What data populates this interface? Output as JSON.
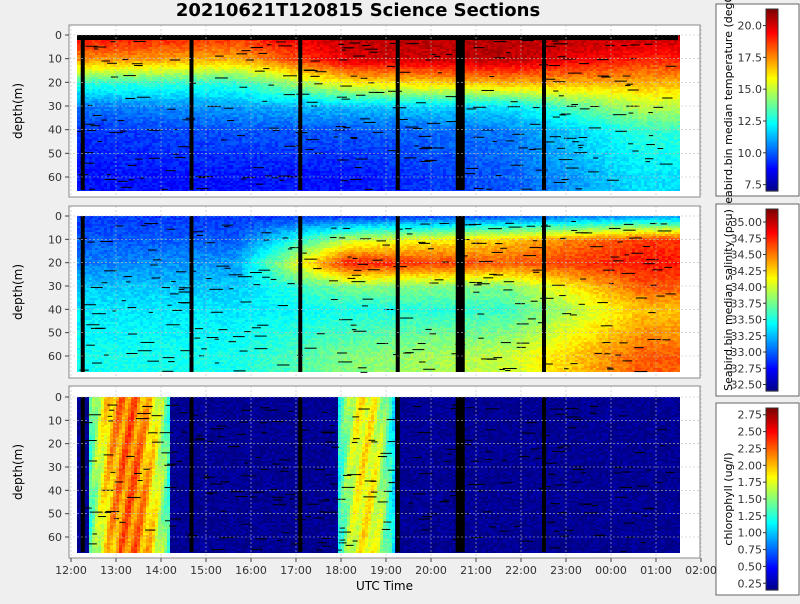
{
  "title": "20210621T120815 Science Sections",
  "x_tick_labels": [
    "12:00",
    "13:00",
    "14:00",
    "15:00",
    "16:00",
    "17:00",
    "18:00",
    "19:00",
    "20:00",
    "21:00",
    "22:00",
    "23:00",
    "00:00",
    "01:00",
    "02:00"
  ],
  "x_axis_label": "UTC Time",
  "panels": [
    {
      "ylabel": "depth(m)",
      "y_tick_labels": [
        "0",
        "10",
        "20",
        "30",
        "40",
        "50",
        "60"
      ],
      "colorbar_label": "seabird.bin median temperature (degC)",
      "colorbar_ticks": [
        "7.5",
        "10.0",
        "12.5",
        "15.0",
        "17.5",
        "20.0"
      ]
    },
    {
      "ylabel": "depth(m)",
      "y_tick_labels": [
        "0",
        "10",
        "20",
        "30",
        "40",
        "50",
        "60"
      ],
      "colorbar_label": "Seabird.bin median salinity (psu)",
      "colorbar_ticks": [
        "32.50",
        "32.75",
        "33.00",
        "33.25",
        "33.50",
        "33.75",
        "34.00",
        "34.25",
        "34.50",
        "34.75",
        "35.00"
      ]
    },
    {
      "ylabel": "depth(m)",
      "y_tick_labels": [
        "0",
        "10",
        "20",
        "30",
        "40",
        "50",
        "60"
      ],
      "colorbar_label": "chlorophyll (ug/l)",
      "colorbar_ticks": [
        "0.25",
        "0.50",
        "0.75",
        "1.00",
        "1.25",
        "1.50",
        "1.75",
        "2.00",
        "2.25",
        "2.50",
        "2.75"
      ]
    }
  ],
  "chart_data": [
    {
      "type": "heatmap",
      "variable": "temperature",
      "unit": "degC",
      "x_axis": "UTC time",
      "x_range": [
        "12:00",
        "01:35"
      ],
      "y_axis": "depth (m)",
      "y_range_depth_m": [
        0,
        66
      ],
      "y_reversed": true,
      "colorbar_range": [
        7.0,
        21.3
      ],
      "description_profiles": [
        {
          "time": "12:30",
          "depth_m": [
            0,
            10,
            20,
            30,
            40,
            60
          ],
          "values": [
            19.5,
            17.5,
            13.0,
            10.5,
            9.5,
            9.0
          ]
        },
        {
          "time": "15:30",
          "depth_m": [
            0,
            10,
            20,
            30,
            40,
            60
          ],
          "values": [
            19.0,
            17.0,
            13.0,
            11.0,
            10.0,
            9.0
          ]
        },
        {
          "time": "18:00",
          "depth_m": [
            0,
            10,
            20,
            30,
            40,
            60
          ],
          "values": [
            20.5,
            20.0,
            16.0,
            11.5,
            10.0,
            9.0
          ]
        },
        {
          "time": "21:30",
          "depth_m": [
            0,
            10,
            20,
            30,
            40,
            60
          ],
          "values": [
            20.5,
            20.5,
            17.0,
            12.0,
            10.5,
            10.0
          ]
        },
        {
          "time": "00:30",
          "depth_m": [
            0,
            10,
            20,
            30,
            40,
            60
          ],
          "values": [
            20.5,
            19.0,
            17.0,
            15.0,
            13.0,
            12.0
          ]
        }
      ]
    },
    {
      "type": "heatmap",
      "variable": "salinity",
      "unit": "psu",
      "x_axis": "UTC time",
      "x_range": [
        "12:00",
        "01:35"
      ],
      "y_axis": "depth (m)",
      "y_range_depth_m": [
        0,
        66
      ],
      "y_reversed": true,
      "colorbar_range": [
        32.4,
        35.2
      ],
      "description_profiles": [
        {
          "time": "12:30",
          "depth_m": [
            0,
            10,
            20,
            30,
            40,
            60
          ],
          "values": [
            32.9,
            33.0,
            33.1,
            33.3,
            33.4,
            33.5
          ]
        },
        {
          "time": "15:30",
          "depth_m": [
            0,
            10,
            20,
            30,
            40,
            60
          ],
          "values": [
            32.9,
            33.0,
            33.2,
            33.3,
            33.4,
            33.5
          ]
        },
        {
          "time": "18:00",
          "depth_m": [
            0,
            10,
            20,
            30,
            40,
            60
          ],
          "values": [
            32.9,
            34.0,
            34.8,
            33.8,
            33.5,
            33.8
          ]
        },
        {
          "time": "21:30",
          "depth_m": [
            0,
            10,
            20,
            30,
            40,
            60
          ],
          "values": [
            33.0,
            34.3,
            34.6,
            33.8,
            33.6,
            34.0
          ]
        },
        {
          "time": "00:30",
          "depth_m": [
            0,
            10,
            20,
            30,
            40,
            60
          ],
          "values": [
            33.2,
            34.7,
            34.8,
            34.6,
            34.3,
            34.6
          ]
        }
      ]
    },
    {
      "type": "heatmap",
      "variable": "chlorophyll",
      "unit": "ug/l",
      "x_axis": "UTC time",
      "x_range": [
        "12:00",
        "01:35"
      ],
      "y_axis": "depth (m)",
      "y_range_depth_m": [
        0,
        66
      ],
      "y_reversed": true,
      "colorbar_range": [
        0.15,
        2.85
      ],
      "high_bands": [
        {
          "time_start": "12:15",
          "time_end": "14:00",
          "peak_value": 2.4
        },
        {
          "time_start": "17:45",
          "time_end": "19:00",
          "peak_value": 2.0
        }
      ],
      "background_value": 0.2
    }
  ]
}
